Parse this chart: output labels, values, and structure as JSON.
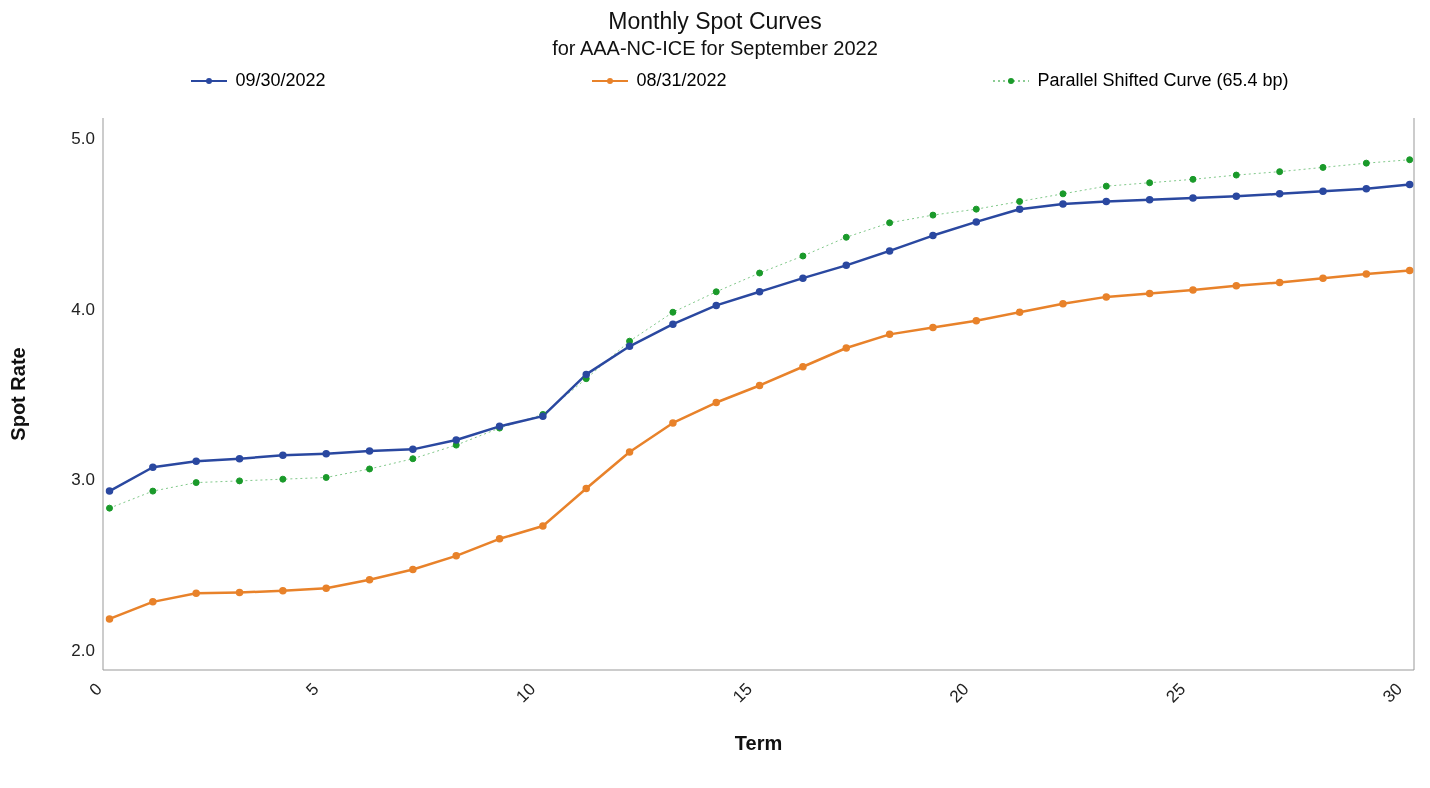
{
  "chart_data": {
    "type": "line",
    "title": "Monthly Spot Curves",
    "subtitle": "for AAA-NC-ICE for September 2022",
    "xlabel": "Term",
    "ylabel": "Spot Rate",
    "x": [
      0.15,
      1.15,
      2.15,
      3.15,
      4.15,
      5.15,
      6.15,
      7.15,
      8.15,
      9.15,
      10.15,
      11.15,
      12.15,
      13.15,
      14.15,
      15.15,
      16.15,
      17.15,
      18.15,
      19.15,
      20.15,
      21.15,
      22.15,
      23.15,
      24.15,
      25.15,
      26.15,
      27.15,
      28.15,
      29.15,
      30.15
    ],
    "series": [
      {
        "name": "09/30/2022",
        "color": "#2a48a0",
        "values": [
          2.93,
          3.07,
          3.105,
          3.12,
          3.14,
          3.15,
          3.165,
          3.175,
          3.23,
          3.31,
          3.37,
          3.615,
          3.78,
          3.91,
          4.02,
          4.1,
          4.18,
          4.255,
          4.34,
          4.43,
          4.51,
          4.585,
          4.615,
          4.63,
          4.64,
          4.65,
          4.66,
          4.675,
          4.69,
          4.705,
          4.73
        ]
      },
      {
        "name": "08/31/2022",
        "color": "#e8822a",
        "values": [
          2.18,
          2.28,
          2.33,
          2.335,
          2.345,
          2.36,
          2.41,
          2.47,
          2.55,
          2.65,
          2.725,
          2.945,
          3.16,
          3.33,
          3.45,
          3.55,
          3.66,
          3.77,
          3.85,
          3.89,
          3.93,
          3.98,
          4.03,
          4.07,
          4.09,
          4.11,
          4.135,
          4.155,
          4.18,
          4.205,
          4.225
        ]
      },
      {
        "name": "Parallel Shifted Curve (65.4 bp)",
        "color": "#1a9a2a",
        "line_style": "dotted",
        "values": [
          2.83,
          2.93,
          2.98,
          2.99,
          3.0,
          3.01,
          3.06,
          3.12,
          3.2,
          3.3,
          3.38,
          3.59,
          3.81,
          3.98,
          4.1,
          4.21,
          4.31,
          4.42,
          4.505,
          4.55,
          4.585,
          4.63,
          4.675,
          4.72,
          4.74,
          4.76,
          4.785,
          4.805,
          4.83,
          4.855,
          4.875
        ]
      }
    ],
    "xlim": [
      0,
      30.25
    ],
    "xticks": [
      0,
      5,
      10,
      15,
      20,
      25,
      30
    ],
    "ylim": [
      1.88,
      5.12
    ],
    "yticks": [
      {
        "value": 2,
        "label": "2.0"
      },
      {
        "value": 3,
        "label": "3.0"
      },
      {
        "value": 4,
        "label": "4.0"
      },
      {
        "value": 5,
        "label": "5.0"
      }
    ],
    "grid": false,
    "legend": "top",
    "marker": "circle",
    "line_style": "solid"
  }
}
